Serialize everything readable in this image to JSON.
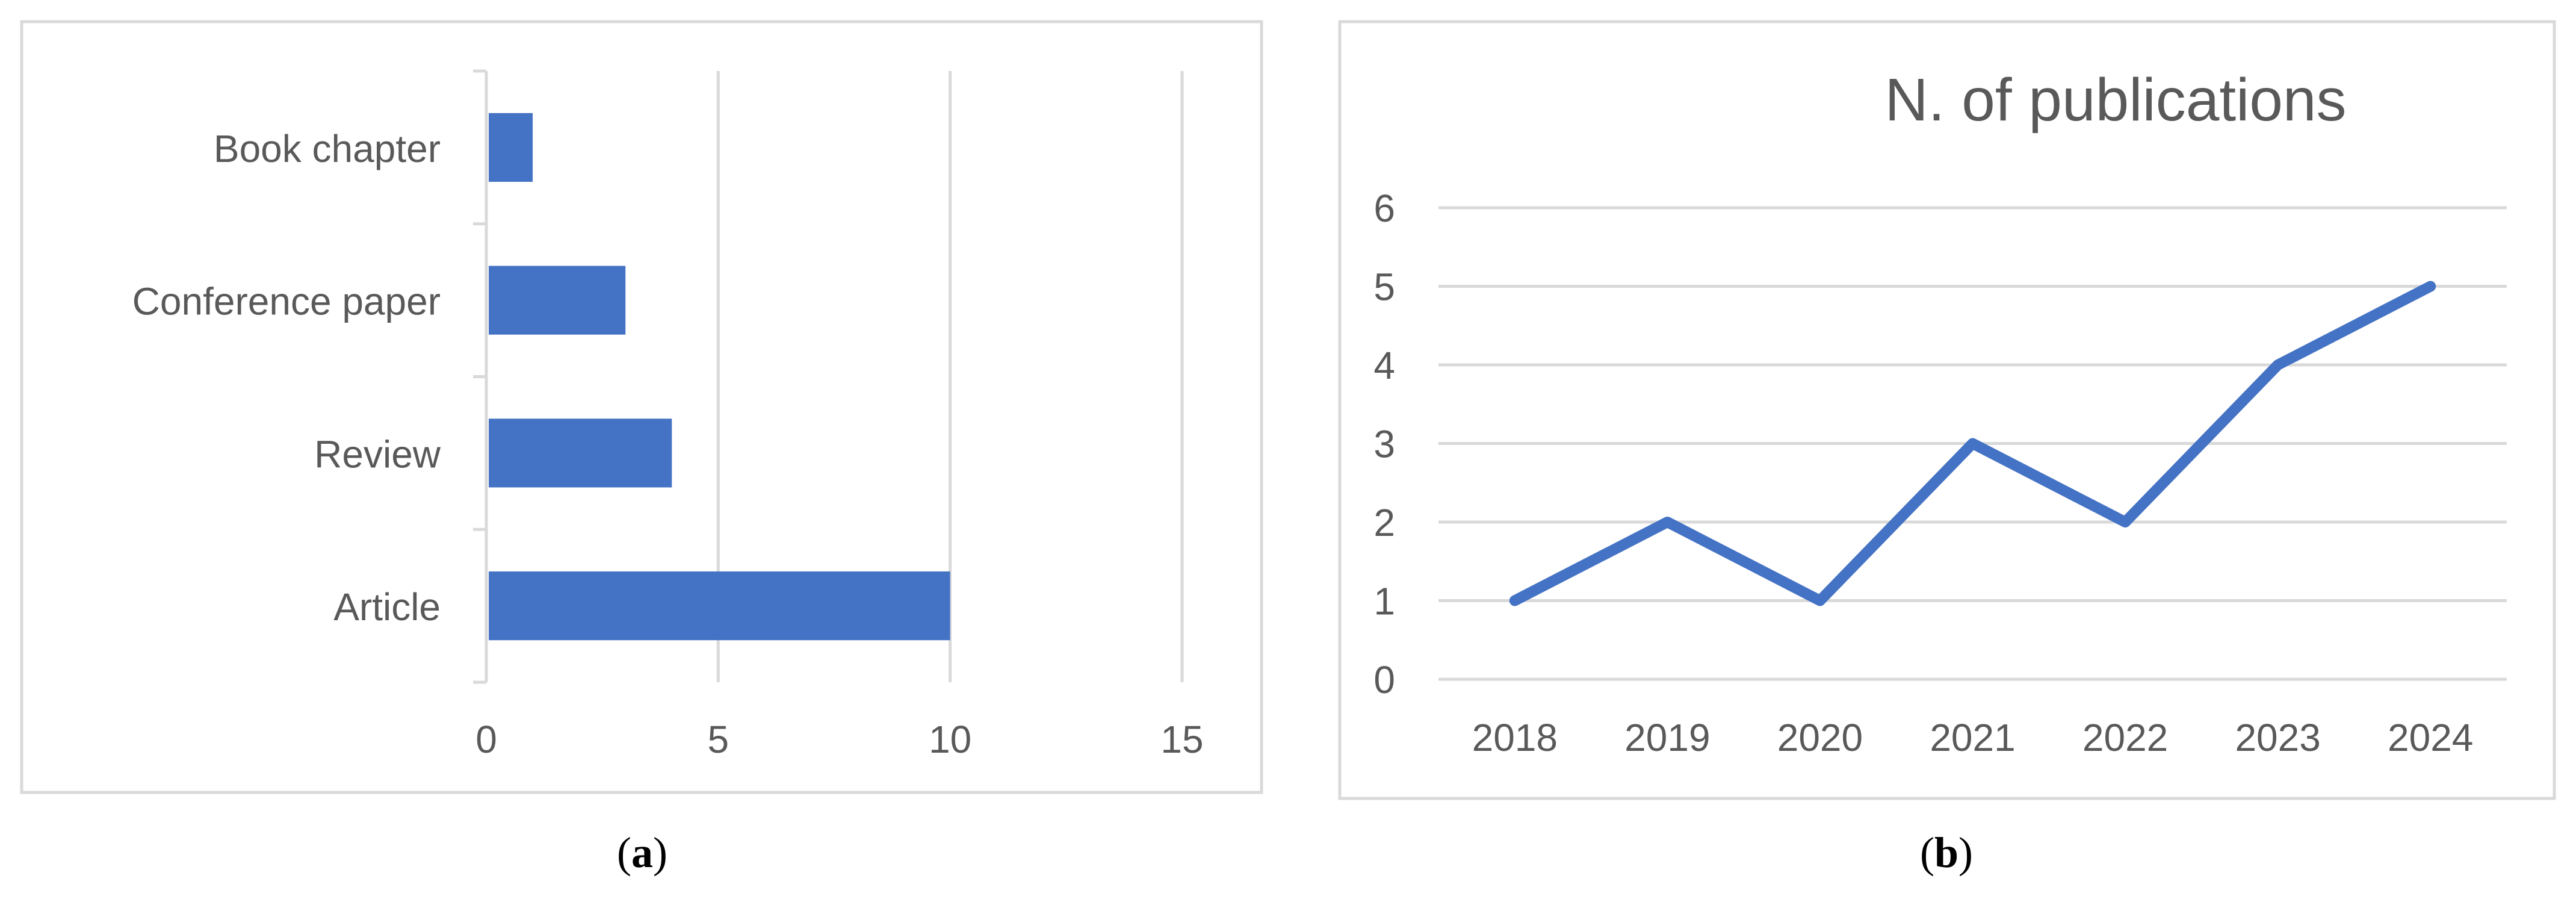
{
  "panels": [
    {
      "caption": "a"
    },
    {
      "caption": "b"
    }
  ],
  "colors": {
    "series": "#4472C4",
    "grid": "#D9D9D9",
    "frame": "#D9D9D9",
    "axis_text": "#595959",
    "caption": "#000000"
  },
  "chart_data": [
    {
      "type": "bar",
      "orientation": "horizontal",
      "title": "",
      "categories": [
        "Article",
        "Review",
        "Conference paper",
        "Book chapter"
      ],
      "values": [
        10,
        4,
        3,
        1
      ],
      "xticks": [
        "0",
        "5",
        "10",
        "15"
      ],
      "xlim": [
        0,
        15
      ],
      "xlabel": "",
      "ylabel": "",
      "grid": "vertical",
      "legend": "none"
    },
    {
      "type": "line",
      "title": "N. of publications",
      "categories": [
        "2018",
        "2019",
        "2020",
        "2021",
        "2022",
        "2023",
        "2024"
      ],
      "values": [
        1,
        2,
        1,
        3,
        2,
        4,
        5
      ],
      "yticks": [
        "0",
        "1",
        "2",
        "3",
        "4",
        "5",
        "6"
      ],
      "ylim": [
        0,
        6
      ],
      "xlabel": "",
      "ylabel": "",
      "grid": "horizontal",
      "legend": "none"
    }
  ]
}
